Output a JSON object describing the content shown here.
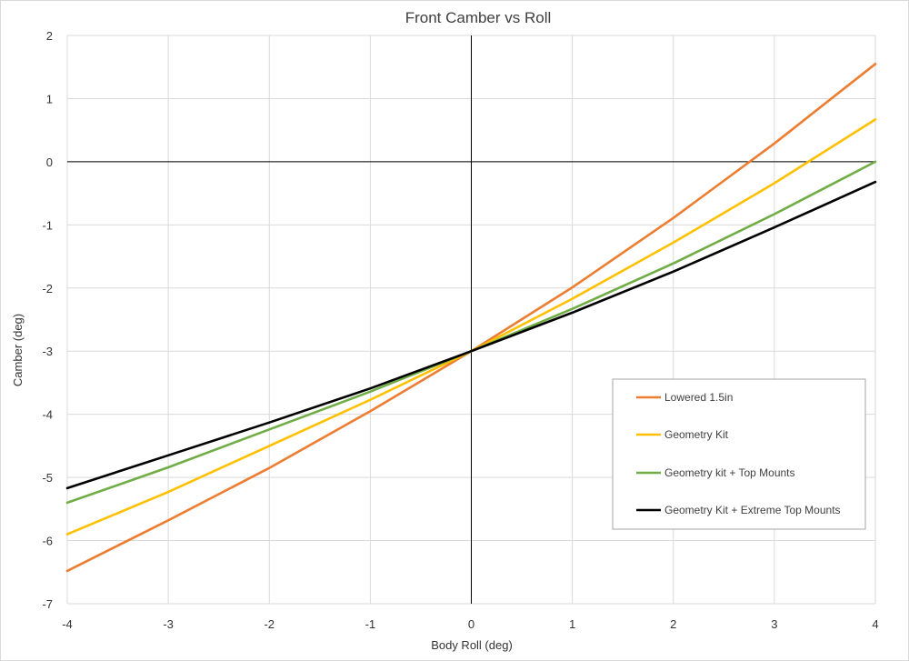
{
  "chart_data": {
    "type": "line",
    "title": "Front Camber vs Roll",
    "xlabel": "Body Roll (deg)",
    "ylabel": "Camber (deg)",
    "xlim": [
      -4,
      4
    ],
    "ylim": [
      -7,
      2
    ],
    "xticks": [
      "-4",
      "-3",
      "-2",
      "-1",
      "0",
      "1",
      "2",
      "3",
      "4"
    ],
    "yticks": [
      "2",
      "1",
      "0",
      "-1",
      "-2",
      "-3",
      "-4",
      "-5",
      "-6",
      "-7"
    ],
    "grid": true,
    "legend_position": "lower-right",
    "x": [
      -4,
      -3,
      -2,
      -1,
      0,
      1,
      2,
      3,
      4
    ],
    "series": [
      {
        "name": "Lowered 1.5in",
        "color": "#ED7D31",
        "values": [
          -6.48,
          -5.68,
          -4.85,
          -3.95,
          -3.0,
          -1.99,
          -0.89,
          0.29,
          1.55
        ]
      },
      {
        "name": "Geometry Kit",
        "color": "#FFC000",
        "values": [
          -5.9,
          -5.23,
          -4.5,
          -3.77,
          -3.0,
          -2.17,
          -1.28,
          -0.34,
          0.67
        ]
      },
      {
        "name": "Geometry kit + Top Mounts",
        "color": "#70AD47",
        "values": [
          -5.4,
          -4.84,
          -4.24,
          -3.64,
          -3.0,
          -2.33,
          -1.61,
          -0.83,
          0.0
        ]
      },
      {
        "name": "Geometry Kit + Extreme Top Mounts",
        "color": "#000000",
        "values": [
          -5.17,
          -4.65,
          -4.13,
          -3.59,
          -3.0,
          -2.39,
          -1.74,
          -1.04,
          -0.32
        ]
      }
    ]
  }
}
